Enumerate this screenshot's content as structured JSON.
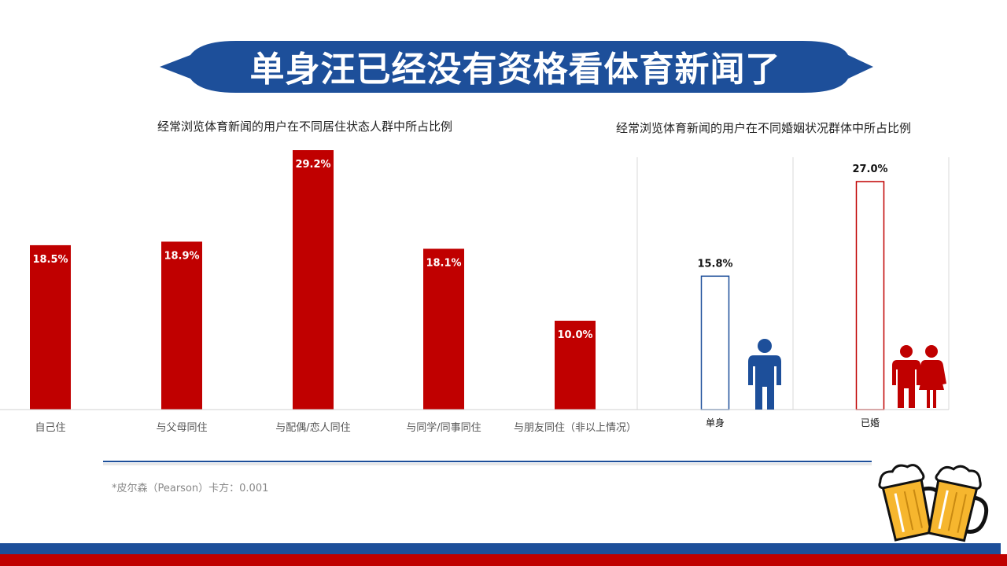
{
  "title": "单身汪已经没有资格看体育新闻了",
  "footnote": "*皮尔森（Pearson）卡方：0.001",
  "colors": {
    "banner_blue": "#1d4f9a",
    "bar_red": "#c00000",
    "outline_blue": "#1d4f9a",
    "outline_red": "#c00000"
  },
  "icons": {
    "single": "single-person-icon",
    "married": "couple-icon",
    "beer": "beer-mugs-icon"
  },
  "chart_data": [
    {
      "type": "bar",
      "title": "经常浏览体育新闻的用户在不同居住状态人群中所占比例",
      "categories": [
        "自己住",
        "与父母同住",
        "与配偶/恋人同住",
        "与同学/同事同住",
        "与朋友同住（非以上情况）"
      ],
      "values": [
        18.5,
        18.9,
        29.2,
        18.1,
        10.0
      ],
      "value_labels": [
        "18.5%",
        "18.9%",
        "29.2%",
        "18.1%",
        "10.0%"
      ],
      "unit": "%",
      "bar_color": "#c00000",
      "grid": false
    },
    {
      "type": "bar",
      "title": "经常浏览体育新闻的用户在不同婚姻状况群体中所占比例",
      "categories": [
        "单身",
        "已婚"
      ],
      "values": [
        15.8,
        27.0
      ],
      "value_labels": [
        "15.8%",
        "27.0%"
      ],
      "unit": "%",
      "bar_style": "outline",
      "bar_colors": [
        "#1d4f9a",
        "#c00000"
      ],
      "grid": false
    }
  ]
}
